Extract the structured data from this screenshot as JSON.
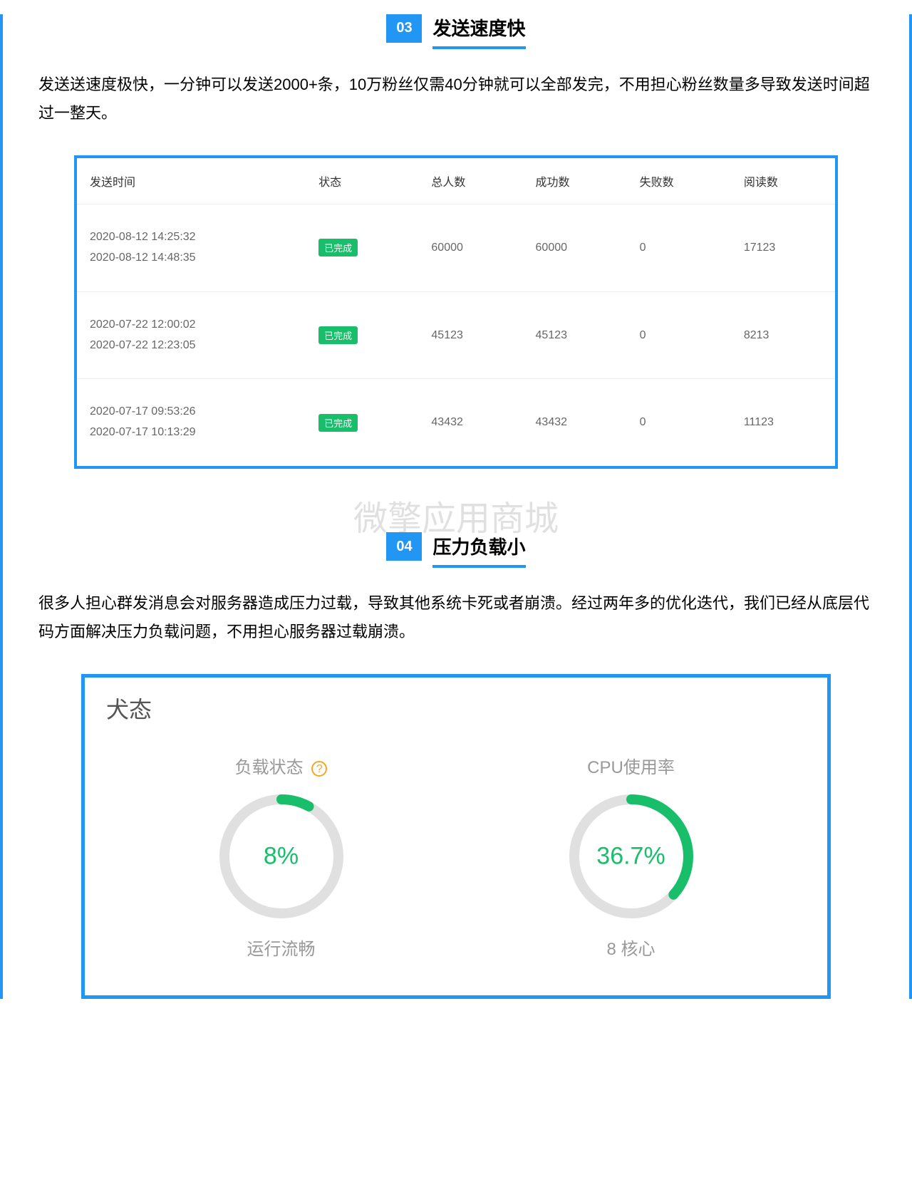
{
  "section3": {
    "number": "03",
    "title": "发送速度快",
    "desc": "发送送速度极快，一分钟可以发送2000+条，10万粉丝仅需40分钟就可以全部发完，不用担心粉丝数量多导致发送时间超过一整天。"
  },
  "table": {
    "columns": [
      "发送时间",
      "状态",
      "总人数",
      "成功数",
      "失败数",
      "阅读数"
    ],
    "rows": [
      {
        "time1": "2020-08-12 14:25:32",
        "time2": "2020-08-12 14:48:35",
        "status": "已完成",
        "total": "60000",
        "success": "60000",
        "fail": "0",
        "read": "17123"
      },
      {
        "time1": "2020-07-22 12:00:02",
        "time2": "2020-07-22 12:23:05",
        "status": "已完成",
        "total": "45123",
        "success": "45123",
        "fail": "0",
        "read": "8213"
      },
      {
        "time1": "2020-07-17 09:53:26",
        "time2": "2020-07-17 10:13:29",
        "status": "已完成",
        "total": "43432",
        "success": "43432",
        "fail": "0",
        "read": "11123"
      }
    ],
    "status_bg": "#19be6b",
    "border_color": "#2196f3"
  },
  "watermark": "微擎应用商城",
  "section4": {
    "number": "04",
    "title": "压力负载小",
    "desc": "很多人担心群发消息会对服务器造成压力过载，导致其他系统卡死或者崩溃。经过两年多的优化迭代，我们已经从底层代码方面解决压力负载问题，不用担心服务器过载崩溃。"
  },
  "gauges": {
    "header": "犬态",
    "border_color": "#2196f3",
    "ring_bg": "#e0e0e0",
    "ring_fg": "#19be6b",
    "ring_radius": 80,
    "ring_stroke": 14,
    "items": [
      {
        "title": "负载状态",
        "help": "?",
        "percent": 8,
        "value": "8%",
        "caption": "运行流畅"
      },
      {
        "title": "CPU使用率",
        "help": "",
        "percent": 36.7,
        "value": "36.7%",
        "caption": "8 核心"
      }
    ]
  }
}
